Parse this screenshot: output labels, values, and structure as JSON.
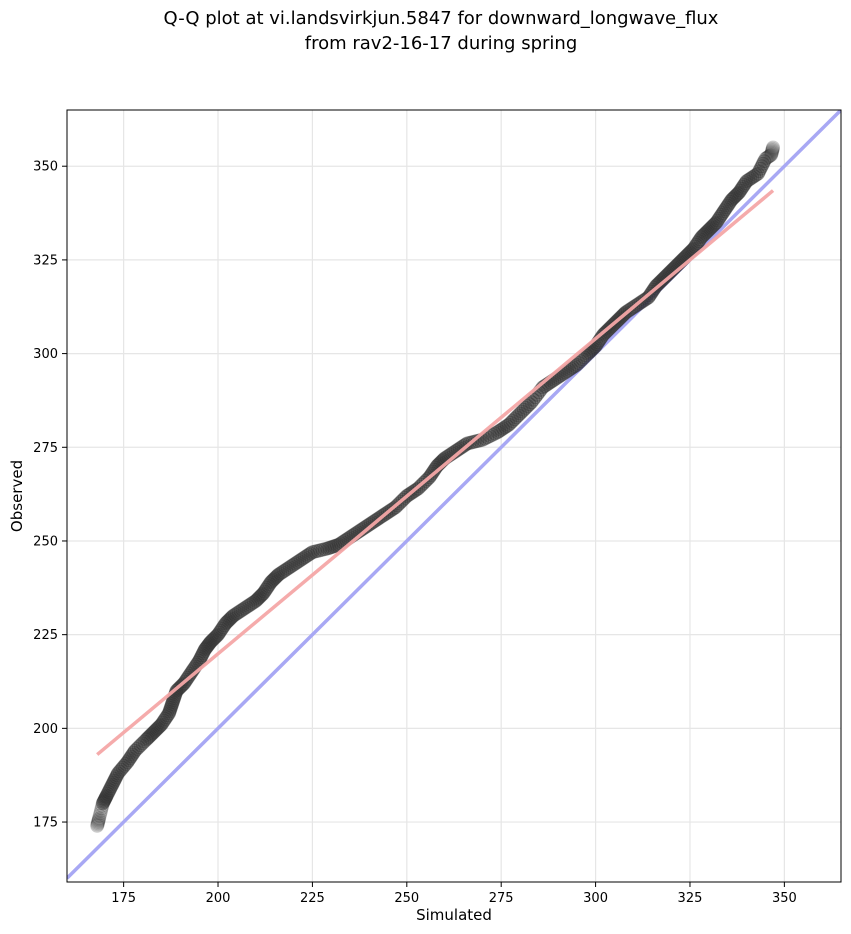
{
  "chart_data": {
    "type": "scatter",
    "title": [
      "Q-Q plot at vi.landsvirkjun.5847 for downward_longwave_flux",
      "from rav2-16-17 during spring"
    ],
    "xlabel": "Simulated",
    "ylabel": "Observed",
    "xlim": [
      160,
      365
    ],
    "ylim": [
      159,
      365
    ],
    "xticks": [
      175,
      200,
      225,
      250,
      275,
      300,
      325,
      350
    ],
    "yticks": [
      175,
      200,
      225,
      250,
      275,
      300,
      325,
      350
    ],
    "xtick_labels": [
      "175",
      "200",
      "225",
      "250",
      "275",
      "300",
      "325",
      "350"
    ],
    "ytick_labels": [
      "175",
      "200",
      "225",
      "250",
      "275",
      "300",
      "325",
      "350"
    ],
    "grid": true,
    "series": [
      {
        "name": "quantiles",
        "color": "#333333",
        "points": [
          [
            168,
            174
          ],
          [
            168.5,
            176
          ],
          [
            169.5,
            180
          ],
          [
            170.5,
            182
          ],
          [
            172,
            185
          ],
          [
            173.5,
            188
          ],
          [
            176,
            191
          ],
          [
            178,
            194
          ],
          [
            181,
            197
          ],
          [
            183,
            199
          ],
          [
            185,
            201
          ],
          [
            187,
            204
          ],
          [
            188,
            207
          ],
          [
            189,
            210
          ],
          [
            191,
            212
          ],
          [
            193,
            215
          ],
          [
            195,
            218
          ],
          [
            196.5,
            221
          ],
          [
            198,
            223
          ],
          [
            200,
            225
          ],
          [
            202,
            228
          ],
          [
            204,
            230
          ],
          [
            207,
            232
          ],
          [
            210,
            234
          ],
          [
            212,
            236
          ],
          [
            214,
            239
          ],
          [
            216,
            241
          ],
          [
            219,
            243
          ],
          [
            222,
            245
          ],
          [
            225,
            247
          ],
          [
            229,
            248
          ],
          [
            232,
            249
          ],
          [
            235,
            251
          ],
          [
            238,
            253
          ],
          [
            241,
            255
          ],
          [
            244,
            257
          ],
          [
            247,
            259
          ],
          [
            250,
            262
          ],
          [
            253,
            264
          ],
          [
            256,
            267
          ],
          [
            258,
            270
          ],
          [
            260,
            272
          ],
          [
            263,
            274
          ],
          [
            266,
            276
          ],
          [
            270,
            277
          ],
          [
            274,
            279
          ],
          [
            277,
            281
          ],
          [
            280,
            284
          ],
          [
            283,
            287
          ],
          [
            286,
            291
          ],
          [
            289,
            293
          ],
          [
            292,
            295
          ],
          [
            295,
            297
          ],
          [
            298,
            300
          ],
          [
            300,
            302
          ],
          [
            302,
            305
          ],
          [
            304,
            307
          ],
          [
            306,
            309
          ],
          [
            308,
            311
          ],
          [
            311,
            313
          ],
          [
            314,
            315
          ],
          [
            316,
            318
          ],
          [
            318,
            320
          ],
          [
            320,
            322
          ],
          [
            322,
            324
          ],
          [
            324,
            326
          ],
          [
            326,
            328
          ],
          [
            328,
            331
          ],
          [
            330,
            333
          ],
          [
            332,
            335
          ],
          [
            334,
            338
          ],
          [
            336,
            341
          ],
          [
            338,
            343
          ],
          [
            340,
            346
          ],
          [
            343,
            348
          ],
          [
            345,
            352
          ],
          [
            346.5,
            353
          ],
          [
            347,
            355
          ]
        ]
      },
      {
        "name": "regression",
        "color": "#f4a6a6",
        "line": [
          [
            168,
            193
          ],
          [
            347,
            343.5
          ]
        ]
      },
      {
        "name": "identity",
        "color": "#a8a8f4",
        "line": [
          [
            160,
            160
          ],
          [
            365,
            365
          ]
        ]
      }
    ]
  }
}
